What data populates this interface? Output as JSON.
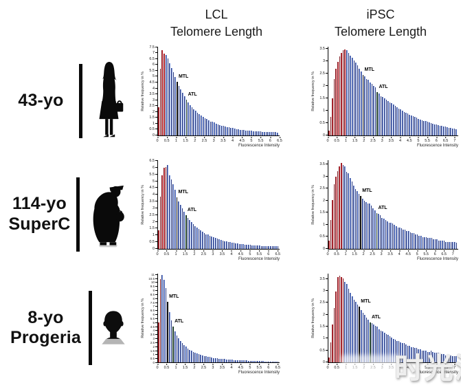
{
  "header": {
    "lcl_line1": "LCL",
    "lcl_line2": "Telomere Length",
    "ipsc_line1": "iPSC",
    "ipsc_line2": "Telomere Length"
  },
  "rows": [
    {
      "label_line1": "43-yo",
      "label_line2": "",
      "icon": "woman-silhouette"
    },
    {
      "label_line1": "114-yo",
      "label_line2": "SuperC",
      "icon": "elderly-woman-silhouette"
    },
    {
      "label_line1": "8-yo",
      "label_line2": "Progeria",
      "icon": "head-bust-silhouette"
    }
  ],
  "watermark": {
    "text": "时光派"
  },
  "colors": {
    "red": "#c62a33",
    "red_edge": "#7e161d",
    "blue": "#7d9ae0",
    "blue_edge": "#24357f",
    "mtl_bar": "#0a0a0a",
    "atl_bar": "#20402c",
    "axis": "#000000"
  },
  "chart_data": [
    {
      "row": "43-yo",
      "column": "LCL",
      "type": "bar",
      "ylabel": "Relative frequency in %",
      "xlabel": "Fluorescence Intensity",
      "ylim": [
        0,
        7.5
      ],
      "ytick_max": 7.5,
      "ytick_step": 0.5,
      "ymax_display": 7.6,
      "ytick_font": 5.5,
      "bin_width": 0.1,
      "xlim": [
        0,
        6.5
      ],
      "xtick_step": 0.5,
      "red_through_index": 3,
      "mtl": {
        "label": "MTL",
        "index": 10
      },
      "atl": {
        "label": "ATL",
        "index": 15
      },
      "values": [
        2.4,
        5.7,
        7.3,
        7.0,
        6.9,
        6.6,
        6.2,
        5.8,
        5.4,
        5.0,
        4.6,
        4.25,
        3.95,
        3.65,
        3.35,
        3.05,
        2.8,
        2.6,
        2.4,
        2.25,
        2.1,
        1.95,
        1.8,
        1.7,
        1.6,
        1.5,
        1.4,
        1.3,
        1.2,
        1.15,
        1.1,
        1.0,
        0.95,
        0.9,
        0.85,
        0.8,
        0.75,
        0.72,
        0.68,
        0.65,
        0.62,
        0.58,
        0.55,
        0.52,
        0.5,
        0.48,
        0.46,
        0.44,
        0.42,
        0.4,
        0.39,
        0.38,
        0.36,
        0.35,
        0.34,
        0.33,
        0.32,
        0.31,
        0.3,
        0.3,
        0.29,
        0.28,
        0.28,
        0.27,
        0.26
      ]
    },
    {
      "row": "43-yo",
      "column": "iPSC",
      "type": "bar",
      "ylabel": "Relative frequency in %",
      "xlabel": "Fluorescence Intensity",
      "ylim": [
        0,
        3.5
      ],
      "ytick_max": 3.5,
      "ytick_step": 0.5,
      "ymax_display": 3.6,
      "ytick_font": 5.5,
      "bin_width": 0.1,
      "xlim": [
        0,
        7.2
      ],
      "xtick_step": 0.5,
      "red_through_index": 9,
      "mtl": {
        "label": "MTL",
        "index": 19
      },
      "atl": {
        "label": "ATL",
        "index": 27
      },
      "values": [
        0.2,
        0.75,
        1.5,
        2.3,
        2.7,
        3.0,
        3.2,
        3.35,
        3.45,
        3.5,
        3.45,
        3.35,
        3.25,
        3.15,
        3.05,
        2.95,
        2.85,
        2.7,
        2.6,
        2.45,
        2.4,
        2.3,
        2.25,
        2.15,
        2.1,
        2.0,
        1.95,
        1.75,
        1.7,
        1.6,
        1.55,
        1.5,
        1.45,
        1.4,
        1.35,
        1.3,
        1.25,
        1.2,
        1.15,
        1.1,
        1.05,
        1.0,
        0.95,
        0.92,
        0.88,
        0.85,
        0.8,
        0.78,
        0.75,
        0.72,
        0.68,
        0.65,
        0.62,
        0.6,
        0.58,
        0.55,
        0.52,
        0.5,
        0.48,
        0.46,
        0.44,
        0.42,
        0.4,
        0.38,
        0.36,
        0.35,
        0.33,
        0.32,
        0.3,
        0.28,
        0.27,
        0.26
      ]
    },
    {
      "row": "114-yo SuperC",
      "column": "LCL",
      "type": "bar",
      "ylabel": "Relative frequency in %",
      "xlabel": "Fluorescence Intensity",
      "ylim": [
        0,
        6.5
      ],
      "ytick_max": 6.5,
      "ytick_step": 0.5,
      "ymax_display": 6.6,
      "ytick_font": 5.5,
      "bin_width": 0.1,
      "xlim": [
        0,
        6.6
      ],
      "xtick_step": 0.5,
      "red_through_index": 4,
      "mtl": {
        "label": "MTL",
        "index": 10
      },
      "atl": {
        "label": "ATL",
        "index": 15
      },
      "values": [
        1.4,
        3.9,
        5.5,
        6.05,
        6.1,
        6.25,
        5.5,
        5.15,
        4.8,
        4.4,
        3.85,
        3.55,
        3.3,
        3.0,
        2.75,
        2.5,
        2.3,
        2.15,
        2.0,
        1.85,
        1.7,
        1.6,
        1.5,
        1.4,
        1.3,
        1.2,
        1.1,
        1.05,
        0.95,
        0.9,
        0.85,
        0.8,
        0.75,
        0.7,
        0.65,
        0.6,
        0.58,
        0.55,
        0.52,
        0.5,
        0.47,
        0.45,
        0.42,
        0.4,
        0.38,
        0.36,
        0.35,
        0.33,
        0.32,
        0.3,
        0.29,
        0.28,
        0.27,
        0.26,
        0.25,
        0.24,
        0.23,
        0.22,
        0.22,
        0.21,
        0.2,
        0.2,
        0.19,
        0.19,
        0.18,
        0.18
      ]
    },
    {
      "row": "114-yo SuperC",
      "column": "iPSC",
      "type": "bar",
      "ylabel": "Relative frequency in %",
      "xlabel": "Fluorescence Intensity",
      "ylim": [
        0,
        3.5
      ],
      "ytick_max": 3.5,
      "ytick_step": 0.5,
      "ymax_display": 3.7,
      "ytick_font": 5.5,
      "bin_width": 0.1,
      "xlim": [
        0,
        7.3
      ],
      "xtick_step": 0.5,
      "red_through_index": 7,
      "mtl": {
        "label": "MTL",
        "index": 18
      },
      "atl": {
        "label": "ATL",
        "index": 27
      },
      "values": [
        0.35,
        1.2,
        2.05,
        2.7,
        3.0,
        3.25,
        3.45,
        3.6,
        3.5,
        3.45,
        3.2,
        3.15,
        2.95,
        2.8,
        2.65,
        2.5,
        2.4,
        2.3,
        2.2,
        2.1,
        2.0,
        1.95,
        1.9,
        1.9,
        1.8,
        1.7,
        1.6,
        1.5,
        1.45,
        1.4,
        1.3,
        1.25,
        1.2,
        1.15,
        1.1,
        1.1,
        1.05,
        1.0,
        0.95,
        0.9,
        0.9,
        0.85,
        0.8,
        0.8,
        0.75,
        0.75,
        0.7,
        0.65,
        0.65,
        0.6,
        0.6,
        0.55,
        0.55,
        0.5,
        0.5,
        0.5,
        0.45,
        0.45,
        0.45,
        0.4,
        0.4,
        0.4,
        0.35,
        0.35,
        0.35,
        0.35,
        0.3,
        0.3,
        0.3,
        0.3,
        0.3,
        0.3,
        0.25
      ]
    },
    {
      "row": "8-yo Progeria",
      "column": "LCL",
      "type": "bar",
      "ylabel": "Relative frequency in %",
      "xlabel": "Fluorescence Intensity",
      "ylim": [
        0,
        11
      ],
      "ytick_max": 11,
      "ytick_step": 0.5,
      "ymax_display": 11.15,
      "ytick_font": 4.5,
      "bin_width": 0.1,
      "xlim": [
        0,
        6.6
      ],
      "xtick_step": 0.5,
      "red_through_index": 1,
      "mtl": {
        "label": "MTL",
        "index": 5
      },
      "atl": {
        "label": "ATL",
        "index": 8
      },
      "values": [
        5.0,
        10.5,
        11.0,
        10.4,
        9.3,
        7.6,
        6.3,
        5.3,
        4.5,
        3.9,
        3.4,
        3.0,
        2.7,
        2.4,
        2.15,
        1.95,
        1.75,
        1.6,
        1.45,
        1.3,
        1.2,
        1.1,
        1.0,
        0.95,
        0.85,
        0.8,
        0.75,
        0.7,
        0.65,
        0.6,
        0.55,
        0.52,
        0.5,
        0.47,
        0.45,
        0.42,
        0.4,
        0.38,
        0.36,
        0.34,
        0.32,
        0.3,
        0.29,
        0.28,
        0.26,
        0.25,
        0.24,
        0.23,
        0.22,
        0.21,
        0.2,
        0.19,
        0.18,
        0.17,
        0.16,
        0.15,
        0.15,
        0.14,
        0.13,
        0.13,
        0.12,
        0.12,
        0.11,
        0.11,
        0.1,
        0.1
      ]
    },
    {
      "row": "8-yo Progeria",
      "column": "iPSC",
      "type": "bar",
      "ylabel": "Relative frequency in %",
      "xlabel": "Fluorescence Intensity",
      "ylim": [
        0,
        3.5
      ],
      "ytick_max": 3.5,
      "ytick_step": 0.5,
      "ymax_display": 3.75,
      "ytick_font": 5.5,
      "bin_width": 0.1,
      "xlim": [
        0,
        7.2
      ],
      "xtick_step": 0.5,
      "red_through_index": 8,
      "mtl": {
        "label": "MTL",
        "index": 17
      },
      "atl": {
        "label": "ATL",
        "index": 23
      },
      "values": [
        0.2,
        0.85,
        1.6,
        2.3,
        3.0,
        3.6,
        3.65,
        3.6,
        3.55,
        3.4,
        3.3,
        3.1,
        2.95,
        2.8,
        2.65,
        2.55,
        2.45,
        2.35,
        2.2,
        2.1,
        2.0,
        1.9,
        1.8,
        1.7,
        1.65,
        1.6,
        1.55,
        1.5,
        1.4,
        1.35,
        1.3,
        1.25,
        1.2,
        1.15,
        1.1,
        1.05,
        1.0,
        0.95,
        0.9,
        0.9,
        0.85,
        0.8,
        0.8,
        0.75,
        0.7,
        0.7,
        0.65,
        0.65,
        0.6,
        0.6,
        0.55,
        0.55,
        0.5,
        0.5,
        0.5,
        0.45,
        0.45,
        0.5,
        0.45,
        0.4,
        0.4,
        0.4,
        0.35,
        0.35,
        0.35,
        0.3,
        0.3,
        0.3,
        0.3,
        0.25,
        0.25,
        0.25
      ]
    }
  ]
}
